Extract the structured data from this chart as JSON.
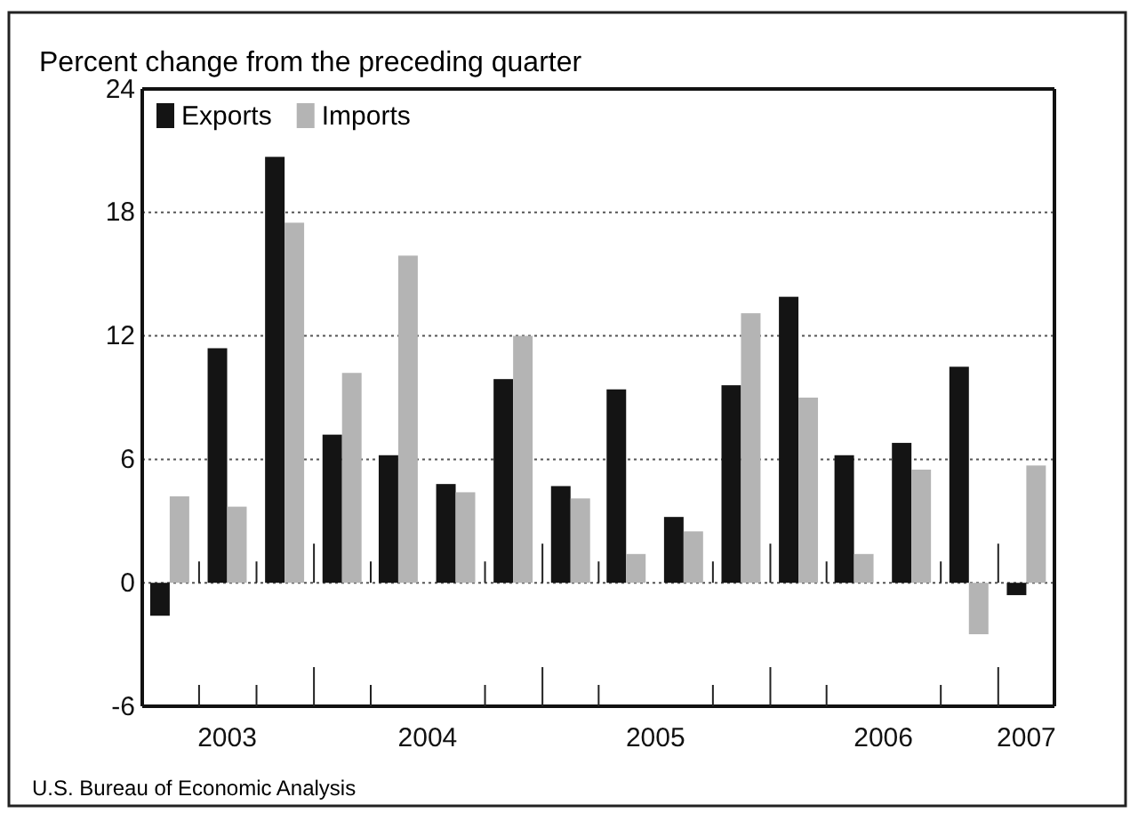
{
  "chart_data": {
    "type": "bar",
    "title": "Percent change from the preceding quarter",
    "x": [
      "2003-05-15",
      "2003-08-15",
      "2003-11-15",
      "2004-02-15",
      "2004-05-15",
      "2004-08-15",
      "2004-11-15",
      "2005-02-15",
      "2005-05-15",
      "2005-08-15",
      "2005-11-15",
      "2006-02-15",
      "2006-05-15",
      "2006-08-15",
      "2006-11-15",
      "2007-02-15"
    ],
    "series": [
      {
        "name": "Exports",
        "color": "#141414",
        "values": [
          -1.6,
          11.4,
          20.7,
          7.2,
          6.2,
          4.8,
          9.9,
          4.7,
          9.4,
          3.2,
          9.6,
          13.9,
          6.2,
          6.8,
          10.5,
          -0.6
        ]
      },
      {
        "name": "Imports",
        "color": "#b4b4b4",
        "values": [
          4.2,
          3.7,
          17.5,
          10.2,
          15.9,
          4.4,
          12.0,
          4.1,
          1.4,
          2.5,
          13.1,
          9.0,
          1.4,
          5.5,
          -2.5,
          5.7
        ]
      }
    ],
    "xlim": [
      "2003-04-01",
      "2007-04-01"
    ],
    "xticks": [
      {
        "value": "2003-07-01",
        "label": null
      },
      {
        "value": "2003-08-15",
        "label": "2003"
      },
      {
        "value": "2003-10-01",
        "label": null
      },
      {
        "value": "2004-01-01",
        "label": null
      },
      {
        "value": "2004-04-01",
        "label": null
      },
      {
        "value": "2004-07-01",
        "label": "2004"
      },
      {
        "value": "2004-10-01",
        "label": null
      },
      {
        "value": "2005-01-01",
        "label": null
      },
      {
        "value": "2005-04-01",
        "label": null
      },
      {
        "value": "2005-07-01",
        "label": "2005"
      },
      {
        "value": "2005-10-01",
        "label": null
      },
      {
        "value": "2006-01-01",
        "label": null
      },
      {
        "value": "2006-04-01",
        "label": null
      },
      {
        "value": "2006-07-01",
        "label": "2006"
      },
      {
        "value": "2006-10-01",
        "label": null
      },
      {
        "value": "2007-01-01",
        "label": null
      },
      {
        "value": "2007-02-15",
        "label": "2007"
      }
    ],
    "ylim": [
      -6,
      24
    ],
    "yticks": [
      -6,
      0,
      6,
      12,
      18,
      24
    ],
    "grid": "y",
    "legend": "top left",
    "annotations": [
      "U.S. Bureau of Economic Analysis"
    ]
  }
}
